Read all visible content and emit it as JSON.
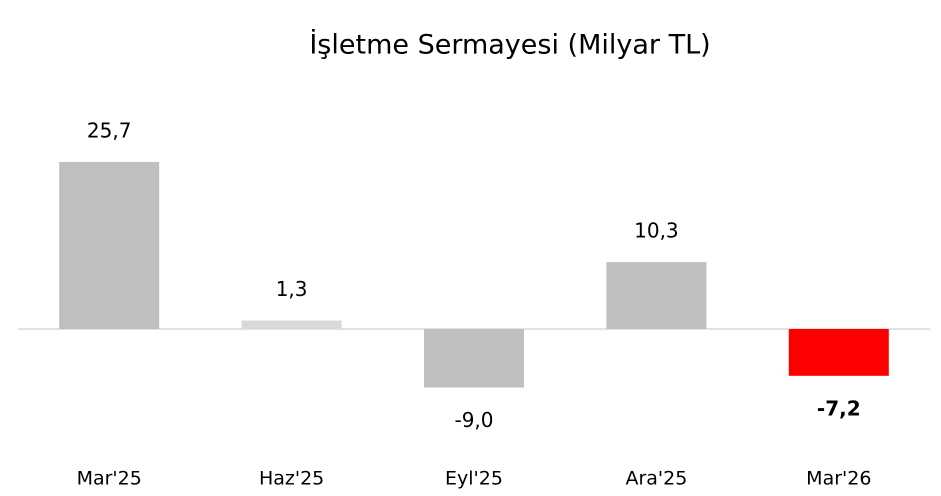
{
  "chart_data": {
    "type": "bar",
    "title": "İşletme Sermayesi (Milyar TL)",
    "categories": [
      "Mar'25",
      "Haz'25",
      "Eyl'25",
      "Ara'25",
      "Mar'26"
    ],
    "values": [
      25.7,
      1.3,
      -9.0,
      10.3,
      -7.2
    ],
    "value_labels": [
      "25,7",
      "1,3",
      "-9,0",
      "10,3",
      "-7,2"
    ],
    "colors": [
      "#bfbfbf",
      "#d9d9d9",
      "#bfbfbf",
      "#bfbfbf",
      "#ff0000"
    ],
    "value_label_bold": [
      false,
      false,
      false,
      false,
      true
    ],
    "ylim": [
      -15,
      30
    ]
  }
}
